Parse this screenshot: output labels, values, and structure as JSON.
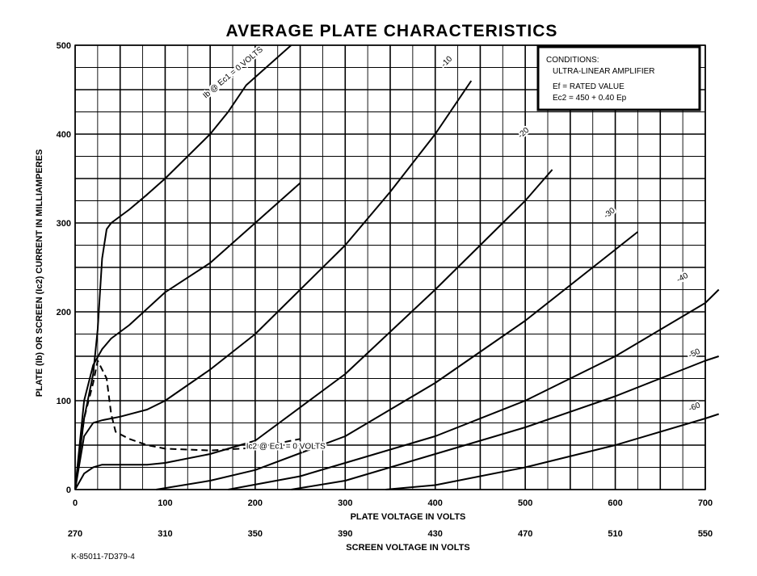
{
  "chart_data": {
    "type": "line",
    "title": "AVERAGE PLATE CHARACTERISTICS",
    "xlabel": "PLATE VOLTAGE IN VOLTS",
    "x2label": "SCREEN VOLTAGE IN VOLTS",
    "ylabel": "PLATE (Ib) OR SCREEN (Ic2) CURRENT IN MILLIAMPERES",
    "xlim": [
      0,
      700
    ],
    "ylim": [
      0,
      500
    ],
    "x_ticks": [
      "0",
      "100",
      "200",
      "300",
      "400",
      "500",
      "600",
      "700"
    ],
    "x2_ticks": [
      "270",
      "310",
      "350",
      "390",
      "430",
      "470",
      "510",
      "550"
    ],
    "y_ticks": [
      "0",
      "100",
      "200",
      "300",
      "400",
      "500"
    ],
    "grid": true,
    "conditions": {
      "heading": "CONDITIONS:",
      "lines": [
        "ULTRA-LINEAR AMPLIFIER",
        "Ef = RATED VALUE",
        "Ec2 = 450 + 0.40  Ep"
      ]
    },
    "footnote": "K-85011-7D379-4",
    "series": [
      {
        "name": "Ib @ Ec1 = 0 VOLTS",
        "style": "solid",
        "x": [
          0,
          10,
          20,
          25,
          30,
          35,
          40,
          60,
          80,
          100,
          120,
          150,
          170,
          190,
          240
        ],
        "y": [
          0,
          80,
          130,
          180,
          260,
          293,
          300,
          315,
          332,
          350,
          370,
          400,
          425,
          455,
          500
        ]
      },
      {
        "name": "Ib @ Ec1 = 0 VOLTS (lower branch)",
        "style": "solid",
        "x": [
          0,
          10,
          20,
          30,
          40,
          60,
          100,
          150,
          200,
          250
        ],
        "y": [
          0,
          100,
          140,
          158,
          170,
          185,
          222,
          255,
          300,
          345
        ]
      },
      {
        "name": "-10",
        "style": "solid",
        "x": [
          0,
          10,
          20,
          30,
          50,
          80,
          100,
          150,
          200,
          250,
          300,
          350,
          400,
          440
        ],
        "y": [
          0,
          60,
          75,
          78,
          82,
          90,
          100,
          135,
          175,
          225,
          275,
          335,
          400,
          460
        ]
      },
      {
        "name": "-20",
        "style": "solid",
        "x": [
          0,
          10,
          20,
          30,
          50,
          80,
          100,
          150,
          200,
          300,
          400,
          500,
          530
        ],
        "y": [
          0,
          18,
          25,
          28,
          28,
          28,
          30,
          40,
          55,
          130,
          225,
          325,
          360
        ]
      },
      {
        "name": "-30",
        "style": "solid",
        "x": [
          90,
          150,
          200,
          300,
          400,
          500,
          600,
          625
        ],
        "y": [
          0,
          10,
          22,
          60,
          120,
          190,
          270,
          290
        ]
      },
      {
        "name": "-40",
        "style": "solid",
        "x": [
          170,
          250,
          300,
          400,
          500,
          600,
          700,
          715
        ],
        "y": [
          0,
          15,
          30,
          60,
          100,
          150,
          210,
          225
        ]
      },
      {
        "name": "-50",
        "style": "solid",
        "x": [
          240,
          300,
          400,
          500,
          600,
          700,
          715
        ],
        "y": [
          0,
          10,
          40,
          70,
          105,
          145,
          150
        ]
      },
      {
        "name": "-60",
        "style": "solid",
        "x": [
          345,
          400,
          500,
          600,
          700,
          715
        ],
        "y": [
          0,
          5,
          25,
          50,
          80,
          85
        ]
      },
      {
        "name": "Ic2 @ Ec1 = 0 VOLTS",
        "style": "dashed",
        "x": [
          0,
          10,
          20,
          25,
          35,
          40,
          45,
          60,
          80,
          100,
          150,
          200,
          250
        ],
        "y": [
          0,
          80,
          120,
          145,
          125,
          85,
          65,
          57,
          50,
          46,
          44,
          47,
          57
        ]
      }
    ],
    "curve_labels": [
      {
        "text": "Ib @ Ec1 = 0 VOLTS",
        "x": 145,
        "y": 440,
        "angle": -40
      },
      {
        "text": "-10",
        "x": 410,
        "y": 475,
        "angle": -45
      },
      {
        "text": "-20",
        "x": 495,
        "y": 395,
        "angle": -42
      },
      {
        "text": "-30",
        "x": 590,
        "y": 305,
        "angle": -38
      },
      {
        "text": "-40",
        "x": 670,
        "y": 233,
        "angle": -28
      },
      {
        "text": "-50",
        "x": 683,
        "y": 148,
        "angle": -25
      },
      {
        "text": "-60",
        "x": 683,
        "y": 88,
        "angle": -22
      },
      {
        "text": "Ic2 @ Ec1 = 0 VOLTS",
        "x": 190,
        "y": 46,
        "angle": 0
      }
    ]
  }
}
